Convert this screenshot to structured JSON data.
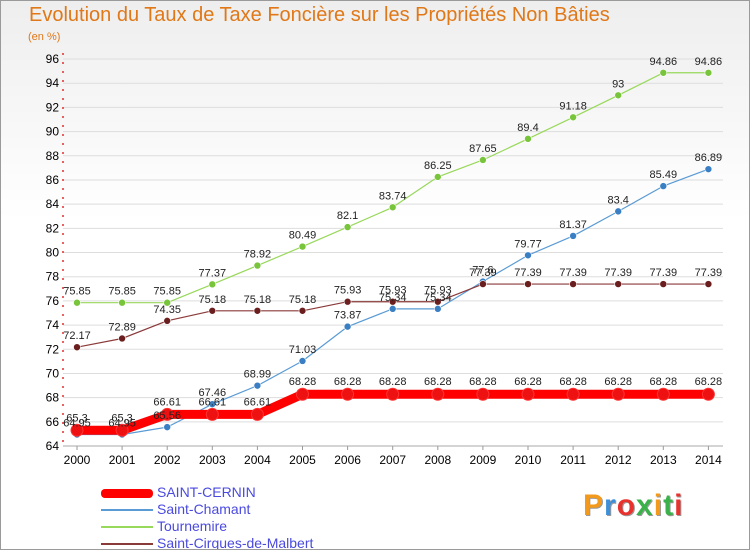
{
  "title": "Evolution du Taux de Taxe Foncière sur les Propriétés Non Bâties",
  "subtitle": "(en %)",
  "logo": {
    "text": "Proxiti",
    "colors": [
      "#f39a1c",
      "#3c8fd8",
      "#e8322e",
      "#3ab14a",
      "#f39a1c",
      "#3ab14a",
      "#e8322e"
    ]
  },
  "chart_data": {
    "type": "line",
    "title": "Evolution du Taux de Taxe Foncière sur les Propriétés Non Bâties",
    "ylabel": "(en %)",
    "xlabel": "",
    "x": [
      "2000",
      "2001",
      "2002",
      "2003",
      "2004",
      "2005",
      "2006",
      "2007",
      "2008",
      "2009",
      "2010",
      "2011",
      "2012",
      "2013",
      "2014"
    ],
    "ylim": [
      64,
      96
    ],
    "yticks": [
      "64",
      "66",
      "68",
      "70",
      "72",
      "74",
      "76",
      "78",
      "80",
      "82",
      "84",
      "86",
      "88",
      "90",
      "92",
      "94",
      "96"
    ],
    "grid": "horizontal",
    "legend": "bottom-left",
    "series": [
      {
        "name": "Saint-Chamant",
        "color": "#5a9bd5",
        "marker": "#3a7fc4",
        "width": 1.2,
        "r": 3.5,
        "values": [
          64.95,
          64.95,
          65.56,
          67.46,
          68.99,
          71.03,
          73.87,
          75.34,
          75.34,
          77.6,
          79.77,
          81.37,
          83.4,
          85.49,
          86.89
        ],
        "labels": [
          "64.95",
          "64.95",
          "65.56",
          "67.46",
          "68.99",
          "71.03",
          "73.87",
          "75.34",
          "75.34",
          "77.6",
          "79.77",
          "81.37",
          "83.4",
          "85.49",
          "86.89"
        ]
      },
      {
        "name": "Tournemire",
        "color": "#98d85a",
        "marker": "#78c43a",
        "width": 1.2,
        "r": 3.5,
        "values": [
          75.85,
          75.85,
          75.85,
          77.37,
          78.92,
          80.49,
          82.1,
          83.74,
          86.25,
          87.65,
          89.4,
          91.18,
          93,
          94.86,
          94.86
        ],
        "labels": [
          "75.85",
          "75.85",
          "75.85",
          "77.37",
          "78.92",
          "80.49",
          "82.1",
          "83.74",
          "86.25",
          "87.65",
          "89.4",
          "91.18",
          "93",
          "94.86",
          "94.86"
        ]
      },
      {
        "name": "Saint-Cirgues-de-Malbert",
        "color": "#8b3a3a",
        "marker": "#6b1e1e",
        "width": 1.2,
        "r": 3.5,
        "values": [
          72.17,
          72.89,
          74.35,
          75.18,
          75.18,
          75.18,
          75.93,
          75.93,
          75.93,
          77.39,
          77.39,
          77.39,
          77.39,
          77.39,
          77.39
        ],
        "labels": [
          "72.17",
          "72.89",
          "74.35",
          "75.18",
          "75.18",
          "75.18",
          "75.93",
          "75.93",
          "75.93",
          "77.39",
          "77.39",
          "77.39",
          "77.39",
          "77.39",
          "77.39"
        ]
      },
      {
        "name": "SAINT-CERNIN",
        "color": "#ff0000",
        "marker": "#ee1111",
        "width": 9,
        "r": 6,
        "values": [
          65.3,
          65.3,
          66.61,
          66.61,
          66.61,
          68.28,
          68.28,
          68.28,
          68.28,
          68.28,
          68.28,
          68.28,
          68.28,
          68.28,
          68.28
        ],
        "labels": [
          "65.3",
          "65.3",
          "66.61",
          "66.61",
          "66.61",
          "68.28",
          "68.28",
          "68.28",
          "68.28",
          "68.28",
          "68.28",
          "68.28",
          "68.28",
          "68.28",
          "68.28"
        ]
      }
    ],
    "legend_items": [
      {
        "label": "SAINT-CERNIN",
        "color": "#ff0000",
        "thickness": 9
      },
      {
        "label": "Saint-Chamant",
        "color": "#5a9bd5",
        "thickness": 2
      },
      {
        "label": "Tournemire",
        "color": "#98d85a",
        "thickness": 2
      },
      {
        "label": "Saint-Cirgues-de-Malbert",
        "color": "#8b3a3a",
        "thickness": 2
      }
    ]
  }
}
